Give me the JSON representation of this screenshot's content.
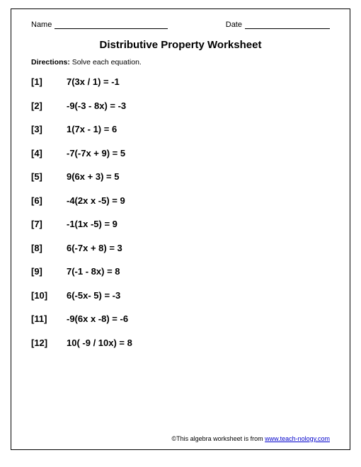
{
  "header": {
    "name_label": "Name",
    "date_label": "Date"
  },
  "title": "Distributive Property Worksheet",
  "directions_label": "Directions:",
  "directions_text": " Solve each equation.",
  "problems": [
    {
      "num": "[1]",
      "eq": "7(3x / 1) = -1"
    },
    {
      "num": "[2]",
      "eq": "-9(-3 - 8x) = -3"
    },
    {
      "num": "[3]",
      "eq": "1(7x - 1) = 6"
    },
    {
      "num": "[4]",
      "eq": "-7(-7x + 9) = 5"
    },
    {
      "num": "[5]",
      "eq": "9(6x + 3) = 5"
    },
    {
      "num": "[6]",
      "eq": "-4(2x x -5) = 9"
    },
    {
      "num": "[7]",
      "eq": "-1(1x -5) = 9"
    },
    {
      "num": "[8]",
      "eq": "6(-7x + 8) = 3"
    },
    {
      "num": "[9]",
      "eq": "7(-1 - 8x) = 8"
    },
    {
      "num": "[10]",
      "eq": "6(-5x- 5) = -3"
    },
    {
      "num": "[11]",
      "eq": "-9(6x x -8) = -6"
    },
    {
      "num": "[12]",
      "eq": "10( -9 / 10x) = 8"
    }
  ],
  "footer": {
    "prefix": "©This algebra worksheet is from ",
    "link_text": "www.teach-nology.com"
  }
}
